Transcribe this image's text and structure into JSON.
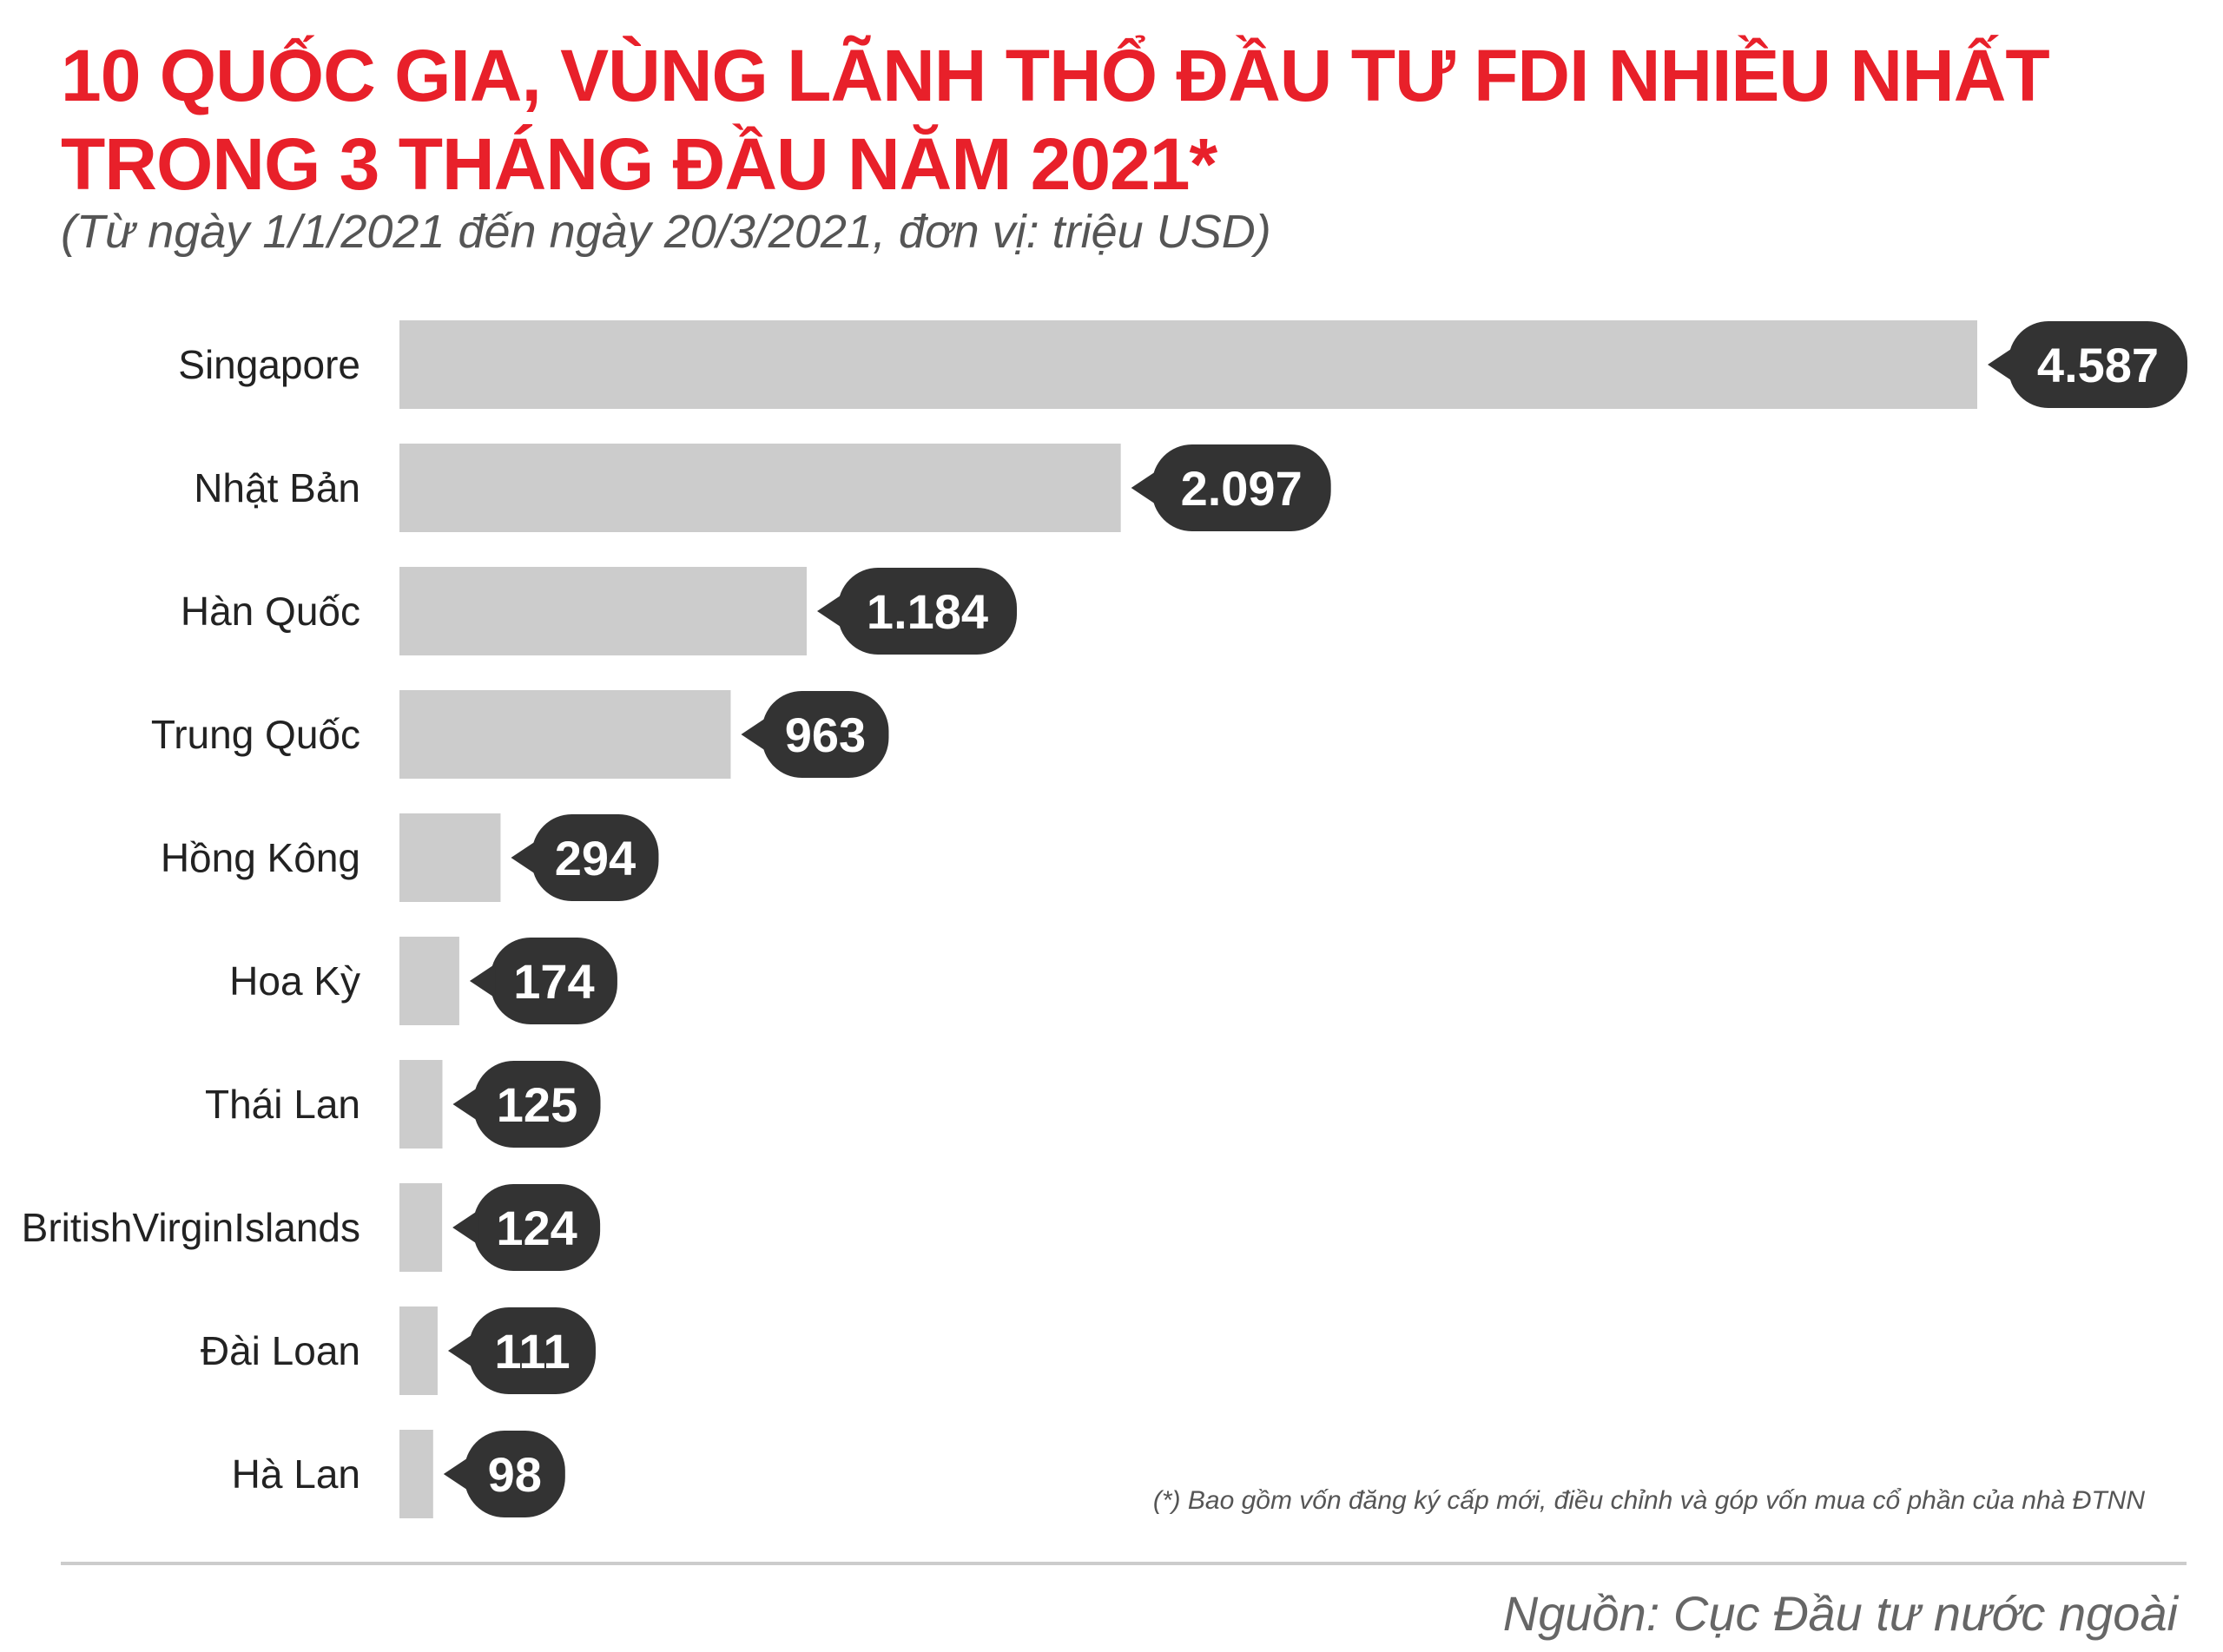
{
  "header": {
    "title_line1": "10 QUỐC GIA, VÙNG LÃNH THỔ ĐẦU TƯ FDI NHIỀU NHẤT",
    "title_line2": "TRONG 3 THÁNG ĐẦU NĂM 2021*",
    "subtitle": "(Từ ngày 1/1/2021 đến ngày 20/3/2021, đơn vị: triệu USD)"
  },
  "footer": {
    "footnote": "(*) Bao gồm vốn đăng ký cấp mới, điều chỉnh và góp vốn mua cổ phần của nhà ĐTNN",
    "source": "Nguồn: Cục Đầu tư nước ngoài"
  },
  "colors": {
    "title": "#e8202a",
    "bar": "#cccccc",
    "value_badge": "#333333",
    "value_text": "#ffffff"
  },
  "chart_data": {
    "type": "bar",
    "orientation": "horizontal",
    "title": "10 QUỐC GIA, VÙNG LÃNH THỔ ĐẦU TƯ FDI NHIỀU NHẤT TRONG 3 THÁNG ĐẦU NĂM 2021*",
    "subtitle": "(Từ ngày 1/1/2021 đến ngày 20/3/2021, đơn vị: triệu USD)",
    "categories": [
      "Singapore",
      "Nhật Bản",
      "Hàn Quốc",
      "Trung Quốc",
      "Hồng Kông",
      "Hoa Kỳ",
      "Thái Lan",
      "BritishVirginIslands",
      "Đài Loan",
      "Hà Lan"
    ],
    "values": [
      4587,
      2097,
      1184,
      963,
      294,
      174,
      125,
      124,
      111,
      98
    ],
    "value_labels": [
      "4.587",
      "2.097",
      "1.184",
      "963",
      "294",
      "174",
      "125",
      "124",
      "111",
      "98"
    ],
    "xlabel": "",
    "ylabel": "",
    "grid": false,
    "legend": "none"
  }
}
